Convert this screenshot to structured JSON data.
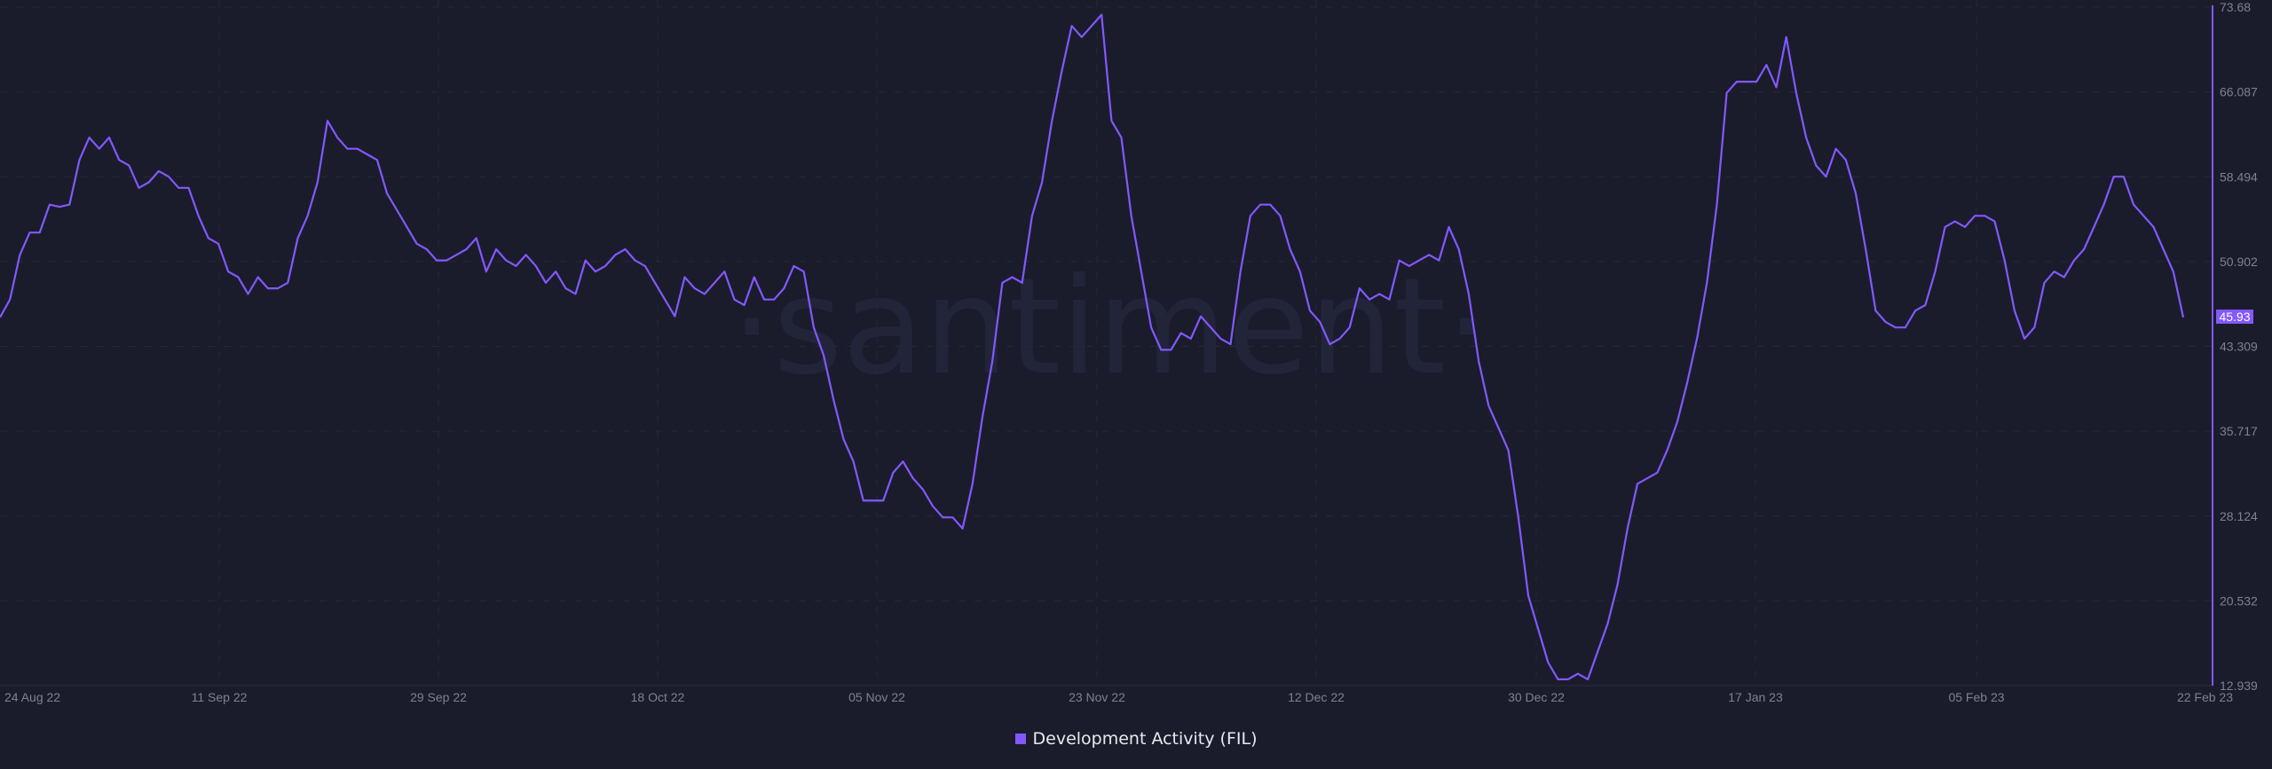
{
  "chart_data": {
    "type": "line",
    "title": "",
    "xlabel": "",
    "ylabel": "",
    "watermark": "·santiment·",
    "ylim": [
      12.939,
      73.68
    ],
    "y_ticks": [
      "73.68",
      "66.087",
      "58.494",
      "50.902",
      "43.309",
      "35.717",
      "28.124",
      "20.532",
      "12.939"
    ],
    "x_ticks": [
      "24 Aug 22",
      "11 Sep 22",
      "29 Sep 22",
      "18 Oct 22",
      "05 Nov 22",
      "23 Nov 22",
      "12 Dec 22",
      "30 Dec 22",
      "17 Jan 23",
      "05 Feb 23",
      "22 Feb 23"
    ],
    "current_value_label": "45.93",
    "grid": true,
    "legend_position": "bottom-center",
    "series": [
      {
        "name": "Development Activity (FIL)",
        "color": "#8358ff",
        "x_range": [
          "24 Aug 22",
          "22 Feb 23"
        ],
        "values": [
          45.9,
          47.5,
          51.5,
          53.5,
          53.5,
          56,
          55.8,
          56,
          60,
          62,
          61,
          62,
          60,
          59.5,
          57.5,
          58,
          59,
          58.5,
          57.5,
          57.5,
          55,
          53,
          52.5,
          50,
          49.5,
          48,
          49.5,
          48.5,
          48.5,
          49,
          53,
          55,
          58,
          63.5,
          62,
          61,
          61,
          60.5,
          60,
          57,
          55.5,
          54,
          52.5,
          52,
          51,
          51,
          51.5,
          52,
          53,
          50,
          52,
          51,
          50.5,
          51.5,
          50.5,
          49,
          50,
          48.5,
          48,
          51,
          50,
          50.5,
          51.5,
          52,
          51,
          50.5,
          49,
          47.5,
          46,
          49.5,
          48.5,
          48,
          49,
          50,
          47.5,
          47,
          49.5,
          47.5,
          47.5,
          48.5,
          50.5,
          50,
          45,
          42.5,
          38.5,
          35,
          33,
          29.5,
          29.5,
          29.5,
          32,
          33,
          31.5,
          30.5,
          29,
          28,
          28,
          27,
          31,
          37,
          42,
          49,
          49.5,
          49,
          55,
          58,
          63.5,
          68,
          72,
          71,
          72,
          73,
          63.5,
          62,
          55,
          50,
          45,
          43,
          43,
          44.5,
          44,
          46,
          45,
          44,
          43.5,
          50,
          55,
          56,
          56,
          55,
          52,
          50,
          46.5,
          45.5,
          43.5,
          44,
          45,
          48.5,
          47.5,
          48,
          47.5,
          51,
          50.5,
          51,
          51.5,
          51,
          54,
          52,
          48,
          42,
          38,
          36,
          34,
          28,
          21,
          18,
          15,
          13.5,
          13.5,
          14,
          13.5,
          16,
          18.5,
          22,
          27,
          31,
          31.5,
          32,
          34,
          36.5,
          40,
          44,
          49,
          56,
          66,
          67,
          67,
          67,
          68.5,
          66.5,
          71,
          66,
          62,
          59.5,
          58.5,
          61,
          60,
          57,
          52,
          46.5,
          45.5,
          45,
          45,
          46.5,
          47,
          50,
          54,
          54.5,
          54,
          55,
          55,
          54.5,
          51,
          46.5,
          44,
          45,
          49,
          50,
          49.5,
          51,
          52,
          54,
          56,
          58.5,
          58.5,
          56,
          55,
          54,
          52,
          50,
          45.9
        ]
      }
    ]
  },
  "legend": {
    "label": "Development Activity (FIL)",
    "color": "#8358ff"
  },
  "colors": {
    "background": "#1a1c2b",
    "line": "#8358ff",
    "axis_text": "#7f8190",
    "grid": "#272a3a",
    "watermark": "#22253a"
  }
}
